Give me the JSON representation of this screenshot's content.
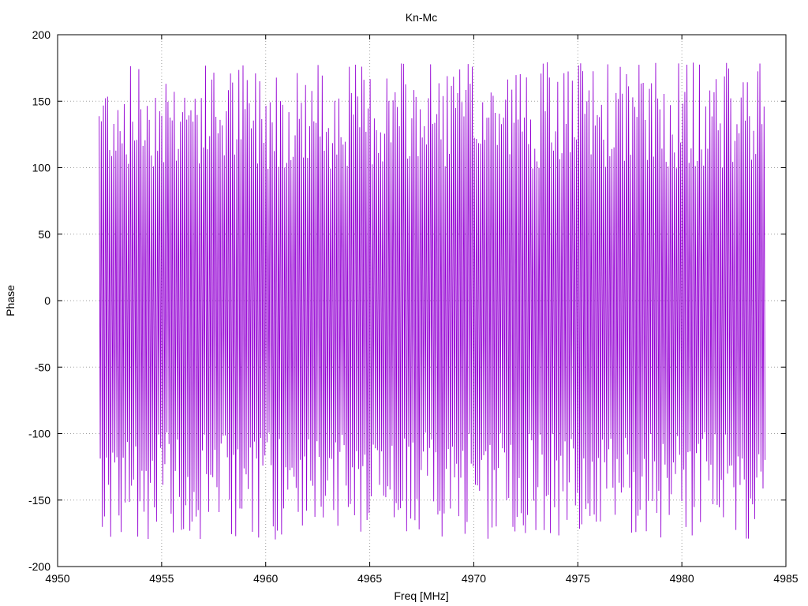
{
  "chart_data": {
    "type": "line",
    "title": "Kn-Mc",
    "xlabel": "Freq [MHz]",
    "ylabel": "Phase",
    "xlim": [
      4950,
      4985
    ],
    "ylim": [
      -200,
      200
    ],
    "xticks": [
      4950,
      4955,
      4960,
      4965,
      4970,
      4975,
      4980,
      4985
    ],
    "yticks": [
      -200,
      -150,
      -100,
      -50,
      0,
      50,
      100,
      150,
      200
    ],
    "grid": true,
    "series": [
      {
        "color": "#9400d3",
        "x_start": 4952.0,
        "x_end": 4984.0,
        "samples": 640,
        "y_range": [
          -180,
          180
        ],
        "waveform": "wrapped phase, rapidly oscillating"
      }
    ]
  }
}
